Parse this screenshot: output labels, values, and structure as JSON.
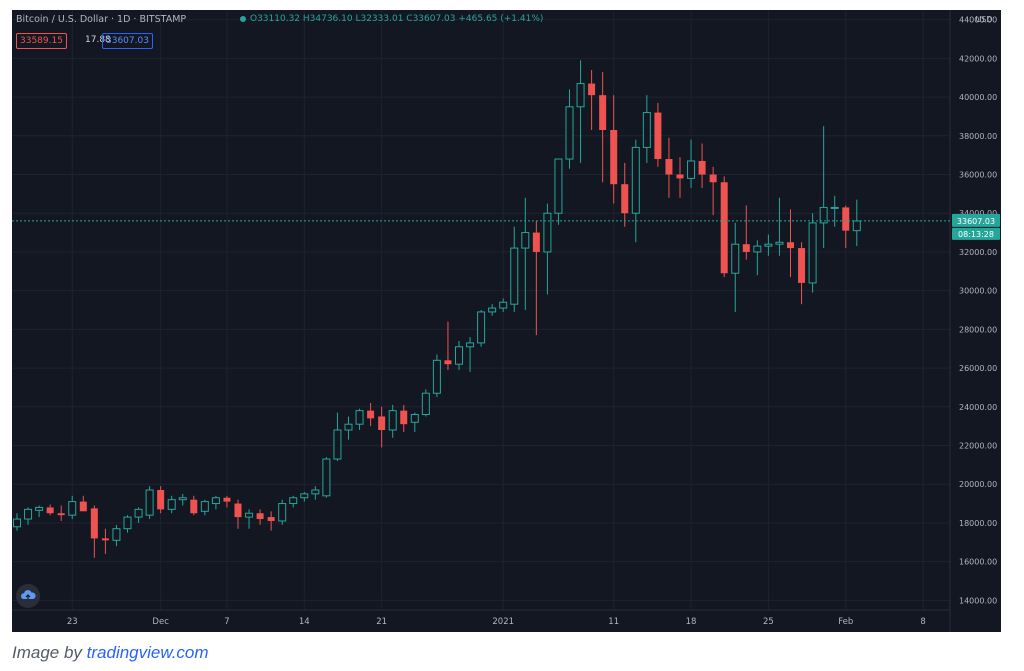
{
  "header": {
    "symbol": "Bitcoin / U.S. Dollar · 1D · BITSTAMP",
    "ohlc": "O33110.32 H34736.10 L32333.01 C33607.03 +465.65 (+1.41%)",
    "sell_price": "33589.15",
    "spread": "17.88",
    "buy_price": "33607.03"
  },
  "price_axis": {
    "currency": "USD",
    "last_price": "33607.03",
    "countdown": "08:13:28"
  },
  "caption": {
    "prefix": "Image by ",
    "link": "tradingview.com"
  },
  "colors": {
    "background": "#131722",
    "up": "#26a69a",
    "down": "#ef5350",
    "grid": "#1f2330",
    "axis_text": "#b2b5be"
  },
  "icons": {
    "logo": "tradingview-cloud-icon",
    "settings": "gear-icon"
  },
  "chart_data": {
    "type": "candlestick",
    "ylim": [
      13500,
      44500
    ],
    "y_ticks": [
      14000,
      16000,
      18000,
      20000,
      22000,
      24000,
      26000,
      28000,
      30000,
      32000,
      34000,
      36000,
      38000,
      40000,
      42000,
      44000
    ],
    "y_tick_labels": [
      "14000.00",
      "16000.00",
      "18000.00",
      "20000.00",
      "22000.00",
      "24000.00",
      "26000.00",
      "28000.00",
      "30000.00",
      "32000.00",
      "34000.00",
      "36000.00",
      "38000.00",
      "40000.00",
      "42000.00",
      "44000.00"
    ],
    "x_ticks": [
      {
        "label": "23",
        "index": 5
      },
      {
        "label": "Dec",
        "index": 13
      },
      {
        "label": "7",
        "index": 19
      },
      {
        "label": "14",
        "index": 26
      },
      {
        "label": "21",
        "index": 33
      },
      {
        "label": "2021",
        "index": 44
      },
      {
        "label": "11",
        "index": 54
      },
      {
        "label": "18",
        "index": 61
      },
      {
        "label": "25",
        "index": 68
      },
      {
        "label": "Feb",
        "index": 75
      },
      {
        "label": "8",
        "index": 82
      }
    ],
    "last_price": 33607.03,
    "candles": [
      {
        "o": 17800,
        "h": 18500,
        "l": 17600,
        "c": 18200
      },
      {
        "o": 18200,
        "h": 18800,
        "l": 17900,
        "c": 18700
      },
      {
        "o": 18650,
        "h": 18900,
        "l": 18300,
        "c": 18800
      },
      {
        "o": 18800,
        "h": 18950,
        "l": 18400,
        "c": 18500
      },
      {
        "o": 18500,
        "h": 18900,
        "l": 18100,
        "c": 18400
      },
      {
        "o": 18400,
        "h": 19400,
        "l": 18200,
        "c": 19100
      },
      {
        "o": 19100,
        "h": 19400,
        "l": 18700,
        "c": 18600
      },
      {
        "o": 18750,
        "h": 18900,
        "l": 16200,
        "c": 17200
      },
      {
        "o": 17200,
        "h": 17700,
        "l": 16400,
        "c": 17100
      },
      {
        "o": 17100,
        "h": 17900,
        "l": 16800,
        "c": 17700
      },
      {
        "o": 17700,
        "h": 18400,
        "l": 17500,
        "c": 18300
      },
      {
        "o": 18300,
        "h": 18800,
        "l": 18000,
        "c": 18700
      },
      {
        "o": 18400,
        "h": 19900,
        "l": 18200,
        "c": 19700
      },
      {
        "o": 19700,
        "h": 19900,
        "l": 18500,
        "c": 18700
      },
      {
        "o": 18700,
        "h": 19400,
        "l": 18500,
        "c": 19200
      },
      {
        "o": 19200,
        "h": 19500,
        "l": 18900,
        "c": 19300
      },
      {
        "o": 19200,
        "h": 19400,
        "l": 18400,
        "c": 18500
      },
      {
        "o": 18600,
        "h": 19200,
        "l": 18400,
        "c": 19100
      },
      {
        "o": 19000,
        "h": 19400,
        "l": 18700,
        "c": 19300
      },
      {
        "o": 19300,
        "h": 19400,
        "l": 18800,
        "c": 19100
      },
      {
        "o": 19000,
        "h": 19200,
        "l": 17700,
        "c": 18300
      },
      {
        "o": 18300,
        "h": 18700,
        "l": 17700,
        "c": 18500
      },
      {
        "o": 18500,
        "h": 18700,
        "l": 17900,
        "c": 18200
      },
      {
        "o": 18300,
        "h": 18600,
        "l": 17600,
        "c": 18100
      },
      {
        "o": 18100,
        "h": 19200,
        "l": 17900,
        "c": 19000
      },
      {
        "o": 19000,
        "h": 19400,
        "l": 18800,
        "c": 19300
      },
      {
        "o": 19300,
        "h": 19600,
        "l": 19100,
        "c": 19500
      },
      {
        "o": 19500,
        "h": 19900,
        "l": 19200,
        "c": 19700
      },
      {
        "o": 19400,
        "h": 21400,
        "l": 19300,
        "c": 21300
      },
      {
        "o": 21300,
        "h": 23700,
        "l": 21200,
        "c": 22800
      },
      {
        "o": 22800,
        "h": 23500,
        "l": 22300,
        "c": 23100
      },
      {
        "o": 23100,
        "h": 23900,
        "l": 22800,
        "c": 23800
      },
      {
        "o": 23800,
        "h": 24200,
        "l": 23000,
        "c": 23400
      },
      {
        "o": 23500,
        "h": 24000,
        "l": 21900,
        "c": 22800
      },
      {
        "o": 22800,
        "h": 24100,
        "l": 22400,
        "c": 23800
      },
      {
        "o": 23800,
        "h": 24100,
        "l": 22700,
        "c": 23100
      },
      {
        "o": 23200,
        "h": 23700,
        "l": 22700,
        "c": 23600
      },
      {
        "o": 23600,
        "h": 24900,
        "l": 23500,
        "c": 24700
      },
      {
        "o": 24700,
        "h": 26700,
        "l": 24500,
        "c": 26400
      },
      {
        "o": 26400,
        "h": 28400,
        "l": 25900,
        "c": 26200
      },
      {
        "o": 26200,
        "h": 27400,
        "l": 25900,
        "c": 27100
      },
      {
        "o": 27100,
        "h": 27600,
        "l": 25800,
        "c": 27300
      },
      {
        "o": 27300,
        "h": 29000,
        "l": 27100,
        "c": 28900
      },
      {
        "o": 28900,
        "h": 29300,
        "l": 28700,
        "c": 29100
      },
      {
        "o": 29100,
        "h": 29600,
        "l": 28900,
        "c": 29400
      },
      {
        "o": 29300,
        "h": 33300,
        "l": 28900,
        "c": 32200
      },
      {
        "o": 32200,
        "h": 34800,
        "l": 29000,
        "c": 33000
      },
      {
        "o": 33000,
        "h": 33600,
        "l": 27700,
        "c": 32000
      },
      {
        "o": 32000,
        "h": 34500,
        "l": 29800,
        "c": 34000
      },
      {
        "o": 34000,
        "h": 36600,
        "l": 33400,
        "c": 36800
      },
      {
        "o": 36800,
        "h": 40400,
        "l": 36300,
        "c": 39500
      },
      {
        "o": 39500,
        "h": 41900,
        "l": 36600,
        "c": 40700
      },
      {
        "o": 40700,
        "h": 41400,
        "l": 38300,
        "c": 40100
      },
      {
        "o": 40100,
        "h": 41300,
        "l": 35600,
        "c": 38300
      },
      {
        "o": 38300,
        "h": 40100,
        "l": 34500,
        "c": 35500
      },
      {
        "o": 35500,
        "h": 36600,
        "l": 33300,
        "c": 34000
      },
      {
        "o": 34000,
        "h": 37800,
        "l": 32500,
        "c": 37400
      },
      {
        "o": 37400,
        "h": 40100,
        "l": 36600,
        "c": 39200
      },
      {
        "o": 39200,
        "h": 39700,
        "l": 36400,
        "c": 36800
      },
      {
        "o": 36800,
        "h": 37900,
        "l": 34800,
        "c": 36000
      },
      {
        "o": 36000,
        "h": 36900,
        "l": 34800,
        "c": 35800
      },
      {
        "o": 35800,
        "h": 37800,
        "l": 35300,
        "c": 36700
      },
      {
        "o": 36700,
        "h": 37600,
        "l": 35300,
        "c": 36000
      },
      {
        "o": 36000,
        "h": 36400,
        "l": 33900,
        "c": 35600
      },
      {
        "o": 35600,
        "h": 35900,
        "l": 30700,
        "c": 30900
      },
      {
        "o": 30900,
        "h": 33500,
        "l": 28900,
        "c": 32400
      },
      {
        "o": 32400,
        "h": 34400,
        "l": 31600,
        "c": 32000
      },
      {
        "o": 32000,
        "h": 32600,
        "l": 30800,
        "c": 32300
      },
      {
        "o": 32300,
        "h": 32900,
        "l": 31800,
        "c": 32400
      },
      {
        "o": 32400,
        "h": 34800,
        "l": 31800,
        "c": 32500
      },
      {
        "o": 32500,
        "h": 34200,
        "l": 30700,
        "c": 32200
      },
      {
        "o": 32200,
        "h": 32500,
        "l": 29300,
        "c": 30400
      },
      {
        "o": 30400,
        "h": 34000,
        "l": 29900,
        "c": 33500
      },
      {
        "o": 33500,
        "h": 38500,
        "l": 32200,
        "c": 34300
      },
      {
        "o": 34300,
        "h": 34900,
        "l": 33300,
        "c": 34300
      },
      {
        "o": 34300,
        "h": 34400,
        "l": 32200,
        "c": 33100
      },
      {
        "o": 33100,
        "h": 34700,
        "l": 32300,
        "c": 33600
      }
    ]
  }
}
